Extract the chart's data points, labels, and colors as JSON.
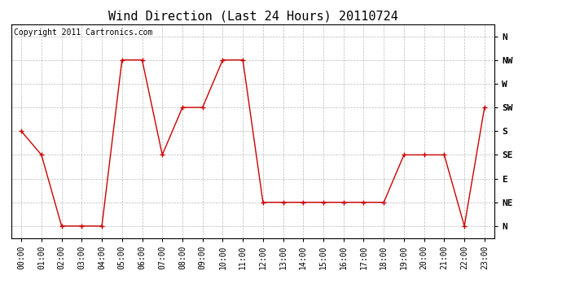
{
  "title": "Wind Direction (Last 24 Hours) 20110724",
  "copyright_text": "Copyright 2011 Cartronics.com",
  "x_labels": [
    "00:00",
    "01:00",
    "02:00",
    "03:00",
    "04:00",
    "05:00",
    "06:00",
    "07:00",
    "08:00",
    "09:00",
    "10:00",
    "11:00",
    "12:00",
    "13:00",
    "14:00",
    "15:00",
    "16:00",
    "17:00",
    "18:00",
    "19:00",
    "20:00",
    "21:00",
    "22:00",
    "23:00"
  ],
  "y_labels": [
    "N",
    "NE",
    "E",
    "SE",
    "S",
    "SW",
    "W",
    "NW",
    "N"
  ],
  "y_ticks": [
    0,
    1,
    2,
    3,
    4,
    5,
    6,
    7,
    8
  ],
  "y_values": [
    4,
    3,
    0,
    0,
    0,
    7,
    7,
    3,
    5,
    5,
    7,
    7,
    1,
    1,
    1,
    1,
    1,
    1,
    1,
    3,
    3,
    3,
    0,
    5
  ],
  "line_color": "#cc0000",
  "marker": "+",
  "marker_size": 4,
  "marker_color": "#cc0000",
  "background_color": "#ffffff",
  "grid_color": "#bbbbbb",
  "title_fontsize": 11,
  "tick_fontsize": 7,
  "copyright_fontsize": 7,
  "y_label_fontsize": 8,
  "figsize": [
    6.9,
    3.75
  ],
  "dpi": 100
}
